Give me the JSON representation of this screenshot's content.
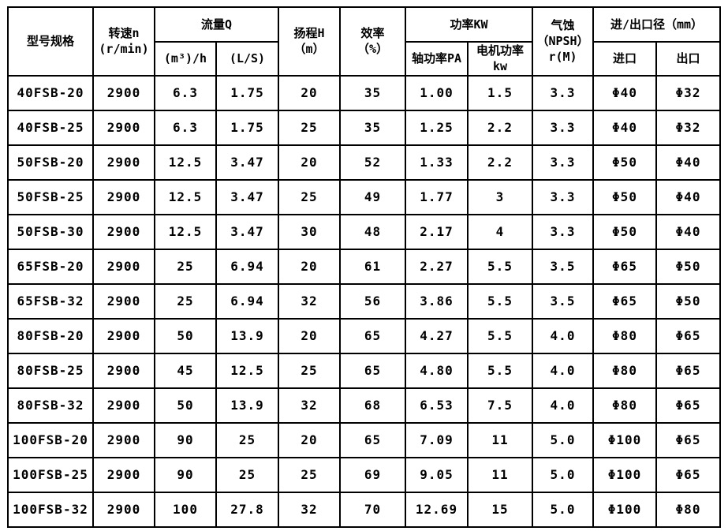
{
  "table": {
    "header": {
      "model": "型号规格",
      "speed": "转速n\n(r/min)",
      "flow_group": "流量Q",
      "flow_m3h": "(m³)/h",
      "flow_ls": "(L/S)",
      "head": "扬程H\n（m）",
      "efficiency": "效率\n（%）",
      "power_group": "功率KW",
      "shaft_power": "轴功率PA",
      "motor_power": "电机功率\nkw",
      "npsh": "气蚀\n（NPSH）\nr(M)",
      "ports_group": "进/出口径（mm）",
      "inlet": "进口",
      "outlet": "出口"
    },
    "rows": [
      [
        "40FSB-20",
        "2900",
        "6.3",
        "1.75",
        "20",
        "35",
        "1.00",
        "1.5",
        "3.3",
        "Φ40",
        "Φ32"
      ],
      [
        "40FSB-25",
        "2900",
        "6.3",
        "1.75",
        "25",
        "35",
        "1.25",
        "2.2",
        "3.3",
        "Φ40",
        "Φ32"
      ],
      [
        "50FSB-20",
        "2900",
        "12.5",
        "3.47",
        "20",
        "52",
        "1.33",
        "2.2",
        "3.3",
        "Φ50",
        "Φ40"
      ],
      [
        "50FSB-25",
        "2900",
        "12.5",
        "3.47",
        "25",
        "49",
        "1.77",
        "3",
        "3.3",
        "Φ50",
        "Φ40"
      ],
      [
        "50FSB-30",
        "2900",
        "12.5",
        "3.47",
        "30",
        "48",
        "2.17",
        "4",
        "3.3",
        "Φ50",
        "Φ40"
      ],
      [
        "65FSB-20",
        "2900",
        "25",
        "6.94",
        "20",
        "61",
        "2.27",
        "5.5",
        "3.5",
        "Φ65",
        "Φ50"
      ],
      [
        "65FSB-32",
        "2900",
        "25",
        "6.94",
        "32",
        "56",
        "3.86",
        "5.5",
        "3.5",
        "Φ65",
        "Φ50"
      ],
      [
        "80FSB-20",
        "2900",
        "50",
        "13.9",
        "20",
        "65",
        "4.27",
        "5.5",
        "4.0",
        "Φ80",
        "Φ65"
      ],
      [
        "80FSB-25",
        "2900",
        "45",
        "12.5",
        "25",
        "65",
        "4.80",
        "5.5",
        "4.0",
        "Φ80",
        "Φ65"
      ],
      [
        "80FSB-32",
        "2900",
        "50",
        "13.9",
        "32",
        "68",
        "6.53",
        "7.5",
        "4.0",
        "Φ80",
        "Φ65"
      ],
      [
        "100FSB-20",
        "2900",
        "90",
        "25",
        "20",
        "65",
        "7.09",
        "11",
        "5.0",
        "Φ100",
        "Φ65"
      ],
      [
        "100FSB-25",
        "2900",
        "90",
        "25",
        "25",
        "69",
        "9.05",
        "11",
        "5.0",
        "Φ100",
        "Φ65"
      ],
      [
        "100FSB-32",
        "2900",
        "100",
        "27.8",
        "32",
        "70",
        "12.69",
        "15",
        "5.0",
        "Φ100",
        "Φ80"
      ]
    ]
  }
}
